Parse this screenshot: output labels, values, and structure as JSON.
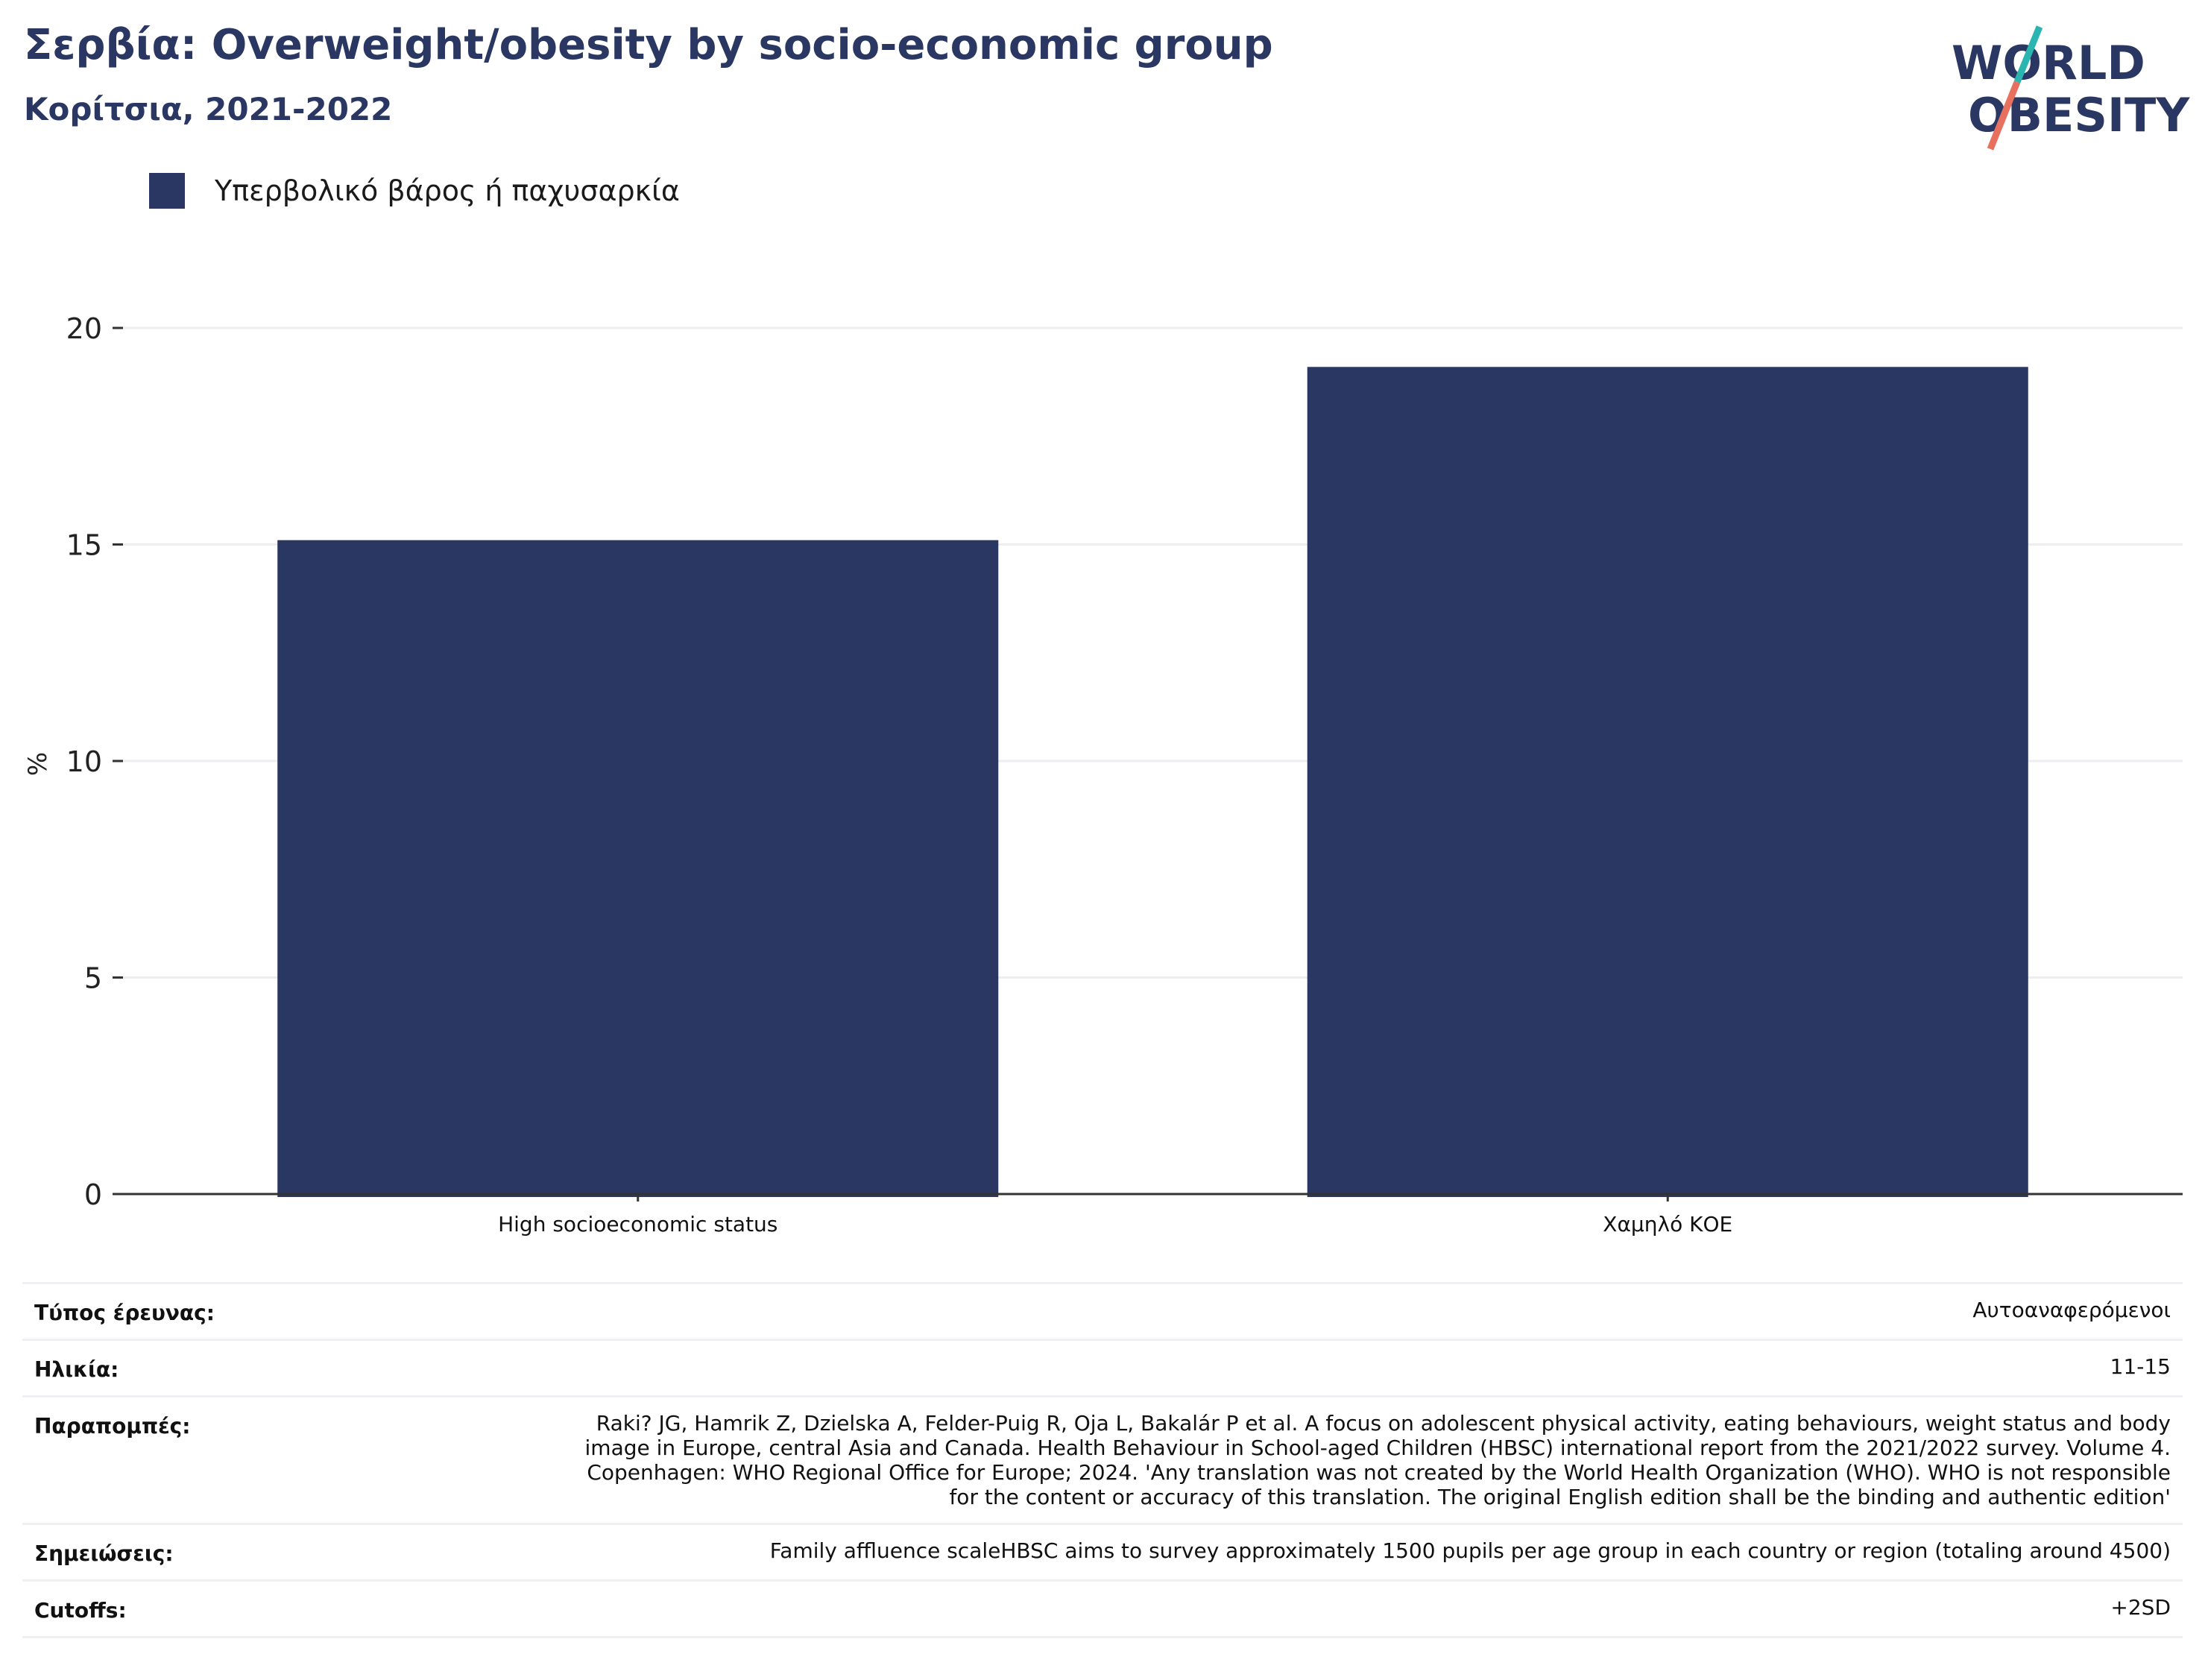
{
  "header": {
    "title": "Σερβία: Overweight/obesity by socio-economic group",
    "subtitle": "Κορίτσια, 2021-2022"
  },
  "logo": {
    "line1": "WORLD",
    "line2": "OBESITY"
  },
  "colors": {
    "bar": "#2a3762",
    "text": "#2a3762",
    "logo_teal": "#2bb5b0",
    "logo_coral": "#e8705f"
  },
  "chart_data": {
    "type": "bar",
    "categories": [
      "High socioeconomic status",
      "Χαμηλό ΚΟΕ"
    ],
    "series": [
      {
        "name": "Υπερβολικό βάρος ή παχυσαρκία",
        "values": [
          15.1,
          19.1
        ]
      }
    ],
    "ylabel": "%",
    "ylim": [
      0,
      20
    ],
    "yticks": [
      0,
      5,
      10,
      15,
      20
    ],
    "grid": true,
    "legend_position": "top-left"
  },
  "info": [
    {
      "label": "Τύπος έρευνας:",
      "value": "Αυτοαναφερόμενοι"
    },
    {
      "label": "Ηλικία:",
      "value": "11-15"
    },
    {
      "label": "Παραπομπές:",
      "value": "Raki? JG, Hamrik Z, Dzielska A, Felder-Puig R, Oja L, Bakalár P et al. A focus on adolescent physical activity, eating behaviours, weight status and body image in Europe, central Asia and Canada. Health Behaviour in School-aged Children (HBSC) international report from the 2021/2022 survey. Volume 4. Copenhagen: WHO Regional Office for Europe; 2024. 'Any translation was not created by the World Health Organization (WHO). WHO is not responsible for the content or accuracy of this translation. The original English edition shall be the binding and authentic edition'"
    },
    {
      "label": "Σημειώσεις:",
      "value": "Family affluence scaleHBSC aims to survey approximately 1500 pupils per age group in each country or region (totaling around 4500)"
    },
    {
      "label": "Cutoffs:",
      "value": "+2SD"
    }
  ]
}
